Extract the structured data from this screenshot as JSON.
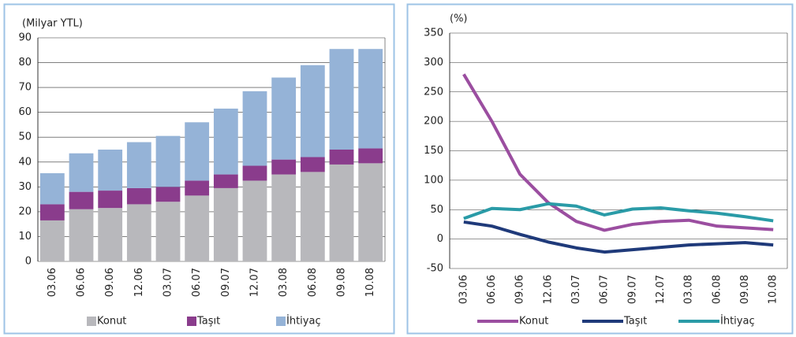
{
  "chart_data": [
    {
      "type": "bar",
      "stacked": true,
      "y_label": "(Milyar YTL)",
      "categories": [
        "03.06",
        "06.06",
        "09.06",
        "12.06",
        "03.07",
        "06.07",
        "09.07",
        "12.07",
        "03.08",
        "06.08",
        "09.08",
        "10.08"
      ],
      "series": [
        {
          "name": "Konut",
          "color": "#b8b8bc",
          "values": [
            16.5,
            21,
            21.5,
            23,
            24,
            26.5,
            29.5,
            32.5,
            35,
            36,
            39,
            39.5
          ]
        },
        {
          "name": "Taşıt",
          "color": "#8a3c8c",
          "values": [
            6.5,
            7,
            7,
            6.5,
            6,
            6,
            5.5,
            6,
            6,
            6,
            6,
            6
          ]
        },
        {
          "name": "İhtiyaç",
          "color": "#95b3d7",
          "values": [
            12.5,
            15.5,
            16.5,
            18.5,
            20.5,
            23.5,
            26.5,
            30,
            33,
            37,
            40.5,
            40
          ]
        }
      ],
      "ylim": [
        0,
        90
      ],
      "yticks": [
        0,
        10,
        20,
        30,
        40,
        50,
        60,
        70,
        80,
        90
      ],
      "grid": true
    },
    {
      "type": "line",
      "y_label": "(%)",
      "categories": [
        "03.06",
        "06.06",
        "09.06",
        "12.06",
        "03.07",
        "06.07",
        "09.07",
        "12.07",
        "03.08",
        "06.08",
        "09.08",
        "10.08"
      ],
      "series": [
        {
          "name": "Konut",
          "color": "#9b4ea0",
          "values": [
            280,
            200,
            110,
            62,
            30,
            15,
            25,
            30,
            32,
            22,
            19,
            16
          ]
        },
        {
          "name": "Taşıt",
          "color": "#1f3a7a",
          "values": [
            29,
            22,
            8,
            -5,
            -15,
            -22,
            -18,
            -14,
            -10,
            -8,
            -6,
            -10
          ]
        },
        {
          "name": "İhtiyaç",
          "color": "#2a9ba7",
          "values": [
            35,
            52,
            50,
            60,
            56,
            41,
            51,
            53,
            48,
            44,
            38,
            31
          ]
        }
      ],
      "ylim": [
        -50,
        350
      ],
      "yticks": [
        -50,
        0,
        50,
        100,
        150,
        200,
        250,
        300,
        350
      ],
      "grid": true
    }
  ]
}
